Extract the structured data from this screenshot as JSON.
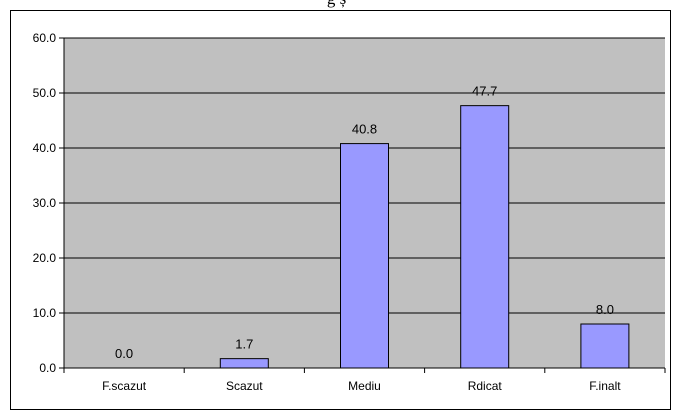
{
  "page": {
    "partial_title": "g                                              ș"
  },
  "chart_data": {
    "type": "bar",
    "title": "",
    "xlabel": "",
    "ylabel": "",
    "categories": [
      "F.scazut",
      "Scazut",
      "Mediu",
      "Rdicat",
      "F.inalt"
    ],
    "values": [
      0.0,
      1.7,
      40.8,
      47.7,
      8.0
    ],
    "data_labels": [
      "0.0",
      "1.7",
      "40.8",
      "47.7",
      "8.0"
    ],
    "y_ticks": [
      "0.0",
      "10.0",
      "20.0",
      "30.0",
      "40.0",
      "50.0",
      "60.0"
    ],
    "ylim": [
      0,
      60
    ],
    "grid": true,
    "legend": "none",
    "colors": {
      "bar_fill": "#9999ff",
      "plot_background": "#c0c0c0",
      "gridline": "#000000"
    }
  }
}
